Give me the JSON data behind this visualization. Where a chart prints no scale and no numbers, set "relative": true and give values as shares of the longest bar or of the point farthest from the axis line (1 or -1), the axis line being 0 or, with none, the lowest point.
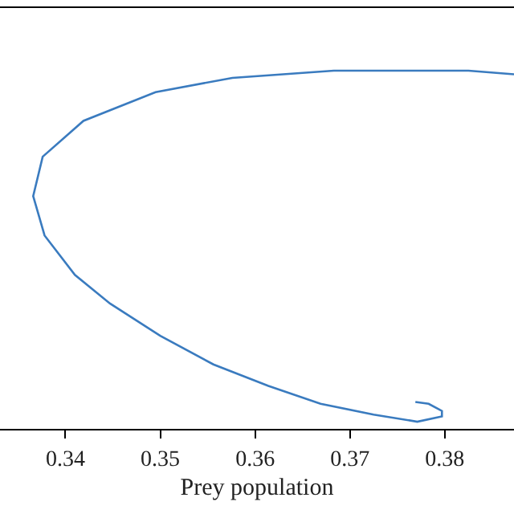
{
  "chart_data": {
    "type": "line",
    "xlabel": "Prey population",
    "relative": true,
    "xlim": [
      0.3331,
      0.3873
    ],
    "xticks": [
      0.34,
      0.35,
      0.36,
      0.37,
      0.38
    ],
    "marker": "none",
    "line_style": "solid",
    "series": [
      {
        "color": "#3a7bbf",
        "x": [
          0.3873,
          0.3825,
          0.3683,
          0.3576,
          0.3495,
          0.3419,
          0.3376,
          0.3366,
          0.3378,
          0.341,
          0.3447,
          0.35,
          0.3556,
          0.3614,
          0.3669,
          0.3725,
          0.3771,
          0.3797,
          0.3797,
          0.3783,
          0.3769
        ],
        "values": [
          0.99,
          1.0,
          1.0,
          0.98,
          0.94,
          0.86,
          0.76,
          0.65,
          0.54,
          0.43,
          0.35,
          0.26,
          0.18,
          0.12,
          0.07,
          0.04,
          0.02,
          0.035,
          0.05,
          0.07,
          0.075
        ]
      }
    ]
  }
}
